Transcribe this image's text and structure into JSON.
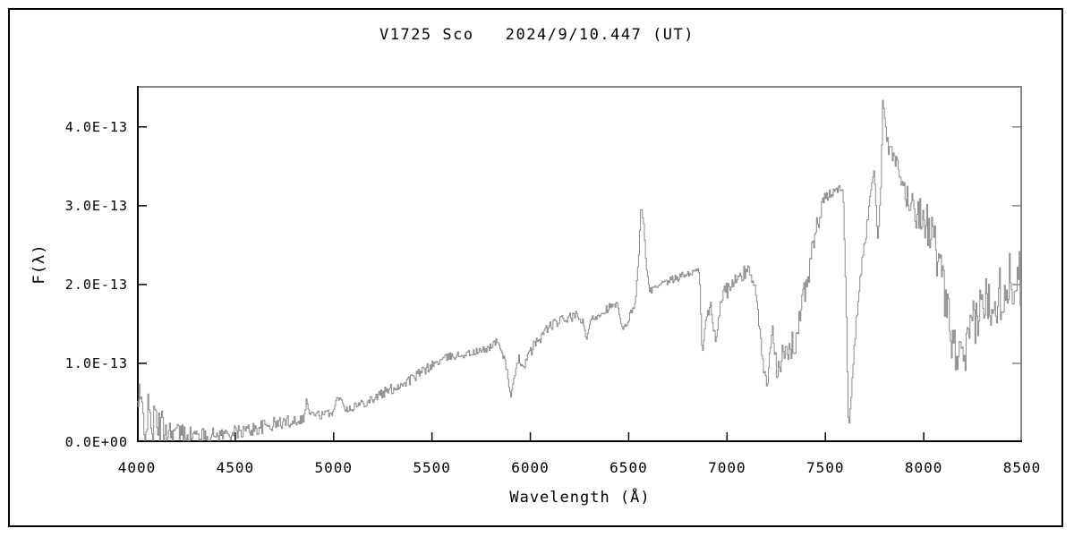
{
  "chart_data": {
    "type": "line",
    "title": "V1725 Sco   2024/9/10.447 (UT)",
    "object_name": "V1725 Sco",
    "observation_date_ut": "2024/9/10.447",
    "xlabel": "Wavelength (Å)",
    "ylabel": "F(λ)",
    "xlim": [
      4000,
      8500
    ],
    "ylim": [
      0,
      4.52
    ],
    "grid": false,
    "legend": "none",
    "line_color": "#8c8c8c",
    "axis_color": "#000000",
    "frame_color": "#878787",
    "background_color": "#ffffff",
    "x_ticks": [
      {
        "value": 4000,
        "label": "4000"
      },
      {
        "value": 4500,
        "label": "4500"
      },
      {
        "value": 5000,
        "label": "5000"
      },
      {
        "value": 5500,
        "label": "5500"
      },
      {
        "value": 6000,
        "label": "6000"
      },
      {
        "value": 6500,
        "label": "6500"
      },
      {
        "value": 7000,
        "label": "7000"
      },
      {
        "value": 7500,
        "label": "7500"
      },
      {
        "value": 8000,
        "label": "8000"
      },
      {
        "value": 8500,
        "label": "8500"
      }
    ],
    "y_ticks": [
      {
        "value": 0,
        "label": "0.0E+00"
      },
      {
        "value": 1,
        "label": "1.0E-13"
      },
      {
        "value": 2,
        "label": "2.0E-13"
      },
      {
        "value": 3,
        "label": "3.0E-13"
      },
      {
        "value": 4,
        "label": "4.0E-13"
      }
    ],
    "flux_unit_scale": "1e-13",
    "noise_seed": 42,
    "noise_step": 5,
    "series": [
      {
        "name": "spectrum",
        "comment": "points are [wavelength_A, flux_1e-13, noise_halfamp_1e-13] anchor samples traced from the plot",
        "points": [
          [
            4000,
            0.45,
            0.4
          ],
          [
            4040,
            0.32,
            0.34
          ],
          [
            4090,
            0.22,
            0.28
          ],
          [
            4150,
            0.15,
            0.2
          ],
          [
            4220,
            0.11,
            0.14
          ],
          [
            4300,
            0.08,
            0.1
          ],
          [
            4400,
            0.09,
            0.09
          ],
          [
            4500,
            0.12,
            0.09
          ],
          [
            4600,
            0.17,
            0.09
          ],
          [
            4700,
            0.23,
            0.09
          ],
          [
            4800,
            0.28,
            0.08
          ],
          [
            4848,
            0.3,
            0.05
          ],
          [
            4861,
            0.55,
            0.03
          ],
          [
            4875,
            0.36,
            0.05
          ],
          [
            4950,
            0.34,
            0.06
          ],
          [
            5000,
            0.4,
            0.05
          ],
          [
            5015,
            0.56,
            0.02
          ],
          [
            5040,
            0.54,
            0.02
          ],
          [
            5060,
            0.42,
            0.05
          ],
          [
            5130,
            0.48,
            0.06
          ],
          [
            5200,
            0.56,
            0.07
          ],
          [
            5300,
            0.68,
            0.07
          ],
          [
            5400,
            0.81,
            0.07
          ],
          [
            5500,
            0.98,
            0.06
          ],
          [
            5580,
            1.08,
            0.05
          ],
          [
            5680,
            1.12,
            0.05
          ],
          [
            5770,
            1.17,
            0.05
          ],
          [
            5829,
            1.28,
            0.04
          ],
          [
            5852,
            1.16,
            0.04
          ],
          [
            5878,
            0.95,
            0.05
          ],
          [
            5898,
            0.56,
            0.04
          ],
          [
            5912,
            0.74,
            0.05
          ],
          [
            5940,
            1.06,
            0.06
          ],
          [
            5965,
            0.97,
            0.06
          ],
          [
            6010,
            1.2,
            0.07
          ],
          [
            6090,
            1.46,
            0.07
          ],
          [
            6160,
            1.55,
            0.06
          ],
          [
            6230,
            1.6,
            0.06
          ],
          [
            6268,
            1.52,
            0.04
          ],
          [
            6285,
            1.28,
            0.03
          ],
          [
            6305,
            1.55,
            0.05
          ],
          [
            6390,
            1.7,
            0.06
          ],
          [
            6440,
            1.74,
            0.04
          ],
          [
            6468,
            1.4,
            0.04
          ],
          [
            6500,
            1.57,
            0.05
          ],
          [
            6532,
            1.78,
            0.04
          ],
          [
            6550,
            2.35,
            0.05
          ],
          [
            6561,
            3.05,
            0.04
          ],
          [
            6572,
            2.85,
            0.05
          ],
          [
            6590,
            2.15,
            0.04
          ],
          [
            6605,
            1.92,
            0.04
          ],
          [
            6650,
            1.97,
            0.05
          ],
          [
            6720,
            2.06,
            0.05
          ],
          [
            6790,
            2.13,
            0.05
          ],
          [
            6858,
            2.18,
            0.03
          ],
          [
            6872,
            1.05,
            0.04
          ],
          [
            6888,
            1.52,
            0.09
          ],
          [
            6915,
            1.72,
            0.12
          ],
          [
            6940,
            1.28,
            0.1
          ],
          [
            6968,
            1.85,
            0.1
          ],
          [
            7005,
            1.95,
            0.11
          ],
          [
            7060,
            2.08,
            0.11
          ],
          [
            7115,
            2.2,
            0.09
          ],
          [
            7150,
            1.82,
            0.08
          ],
          [
            7182,
            0.95,
            0.07
          ],
          [
            7203,
            0.7,
            0.05
          ],
          [
            7228,
            1.5,
            0.05
          ],
          [
            7250,
            0.98,
            0.17
          ],
          [
            7300,
            1.1,
            0.19
          ],
          [
            7345,
            1.28,
            0.18
          ],
          [
            7400,
            1.98,
            0.18
          ],
          [
            7450,
            2.68,
            0.15
          ],
          [
            7492,
            3.08,
            0.08
          ],
          [
            7540,
            3.18,
            0.06
          ],
          [
            7588,
            3.24,
            0.04
          ],
          [
            7603,
            1.8,
            0.08
          ],
          [
            7616,
            0.15,
            0.04
          ],
          [
            7632,
            0.7,
            0.08
          ],
          [
            7655,
            1.6,
            0.1
          ],
          [
            7684,
            2.25,
            0.1
          ],
          [
            7712,
            2.8,
            0.1
          ],
          [
            7733,
            3.35,
            0.07
          ],
          [
            7749,
            3.38,
            0.07
          ],
          [
            7766,
            2.48,
            0.07
          ],
          [
            7781,
            3.3,
            0.08
          ],
          [
            7791,
            4.42,
            0.04
          ],
          [
            7802,
            4.0,
            0.07
          ],
          [
            7818,
            3.75,
            0.1
          ],
          [
            7852,
            3.55,
            0.14
          ],
          [
            7900,
            3.18,
            0.18
          ],
          [
            7952,
            2.95,
            0.22
          ],
          [
            8002,
            2.85,
            0.25
          ],
          [
            8052,
            2.55,
            0.28
          ],
          [
            8100,
            1.9,
            0.3
          ],
          [
            8150,
            1.2,
            0.28
          ],
          [
            8198,
            0.98,
            0.28
          ],
          [
            8250,
            1.48,
            0.32
          ],
          [
            8300,
            1.75,
            0.35
          ],
          [
            8352,
            1.85,
            0.38
          ],
          [
            8400,
            1.95,
            0.4
          ],
          [
            8450,
            2.05,
            0.4
          ],
          [
            8482,
            2.3,
            0.32
          ],
          [
            8500,
            1.45,
            0.15
          ]
        ]
      }
    ]
  }
}
